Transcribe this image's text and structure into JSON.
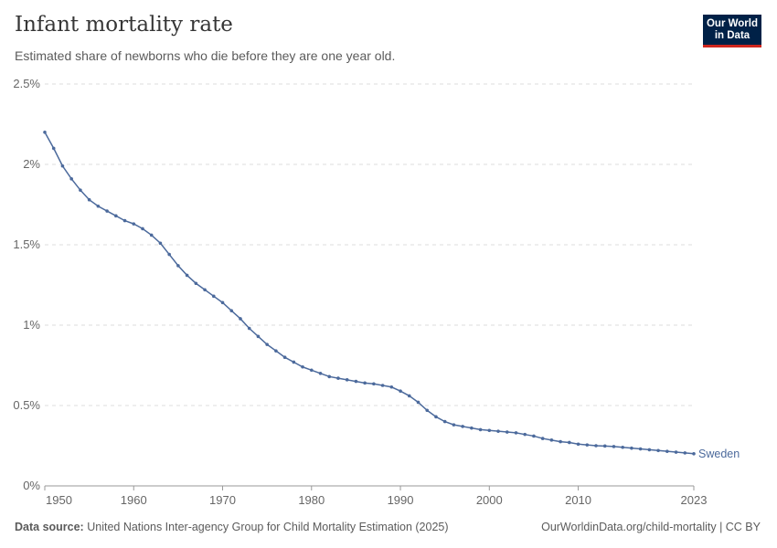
{
  "header": {
    "title": "Infant mortality rate",
    "subtitle": "Estimated share of newborns who die before they are one year old."
  },
  "logo": {
    "line1": "Our World",
    "line2": "in Data"
  },
  "footer": {
    "source_label": "Data source:",
    "source": "United Nations Inter-agency Group for Child Mortality Estimation (2025)",
    "link": "OurWorldinData.org/child-mortality | CC BY"
  },
  "chart_data": {
    "type": "line",
    "title": "Infant mortality rate",
    "xlabel": "",
    "ylabel": "",
    "xlim": [
      1950,
      2023
    ],
    "ylim": [
      0,
      2.5
    ],
    "grid": "horizontal dashed",
    "x_ticks": [
      "1950",
      "1960",
      "1970",
      "1980",
      "1990",
      "2000",
      "2010",
      "2023"
    ],
    "y_ticks": [
      "0%",
      "0.5%",
      "1%",
      "1.5%",
      "2%",
      "2.5%"
    ],
    "series": [
      {
        "name": "Sweden",
        "color": "#4c6a9c",
        "x": [
          1950,
          1951,
          1952,
          1953,
          1954,
          1955,
          1956,
          1957,
          1958,
          1959,
          1960,
          1961,
          1962,
          1963,
          1964,
          1965,
          1966,
          1967,
          1968,
          1969,
          1970,
          1971,
          1972,
          1973,
          1974,
          1975,
          1976,
          1977,
          1978,
          1979,
          1980,
          1981,
          1982,
          1983,
          1984,
          1985,
          1986,
          1987,
          1988,
          1989,
          1990,
          1991,
          1992,
          1993,
          1994,
          1995,
          1996,
          1997,
          1998,
          1999,
          2000,
          2001,
          2002,
          2003,
          2004,
          2005,
          2006,
          2007,
          2008,
          2009,
          2010,
          2011,
          2012,
          2013,
          2014,
          2015,
          2016,
          2017,
          2018,
          2019,
          2020,
          2021,
          2022,
          2023
        ],
        "values": [
          2.2,
          2.1,
          1.99,
          1.91,
          1.84,
          1.78,
          1.74,
          1.71,
          1.68,
          1.65,
          1.63,
          1.6,
          1.56,
          1.51,
          1.44,
          1.37,
          1.31,
          1.26,
          1.22,
          1.18,
          1.14,
          1.09,
          1.04,
          0.98,
          0.93,
          0.88,
          0.84,
          0.8,
          0.77,
          0.74,
          0.72,
          0.7,
          0.68,
          0.67,
          0.66,
          0.65,
          0.64,
          0.635,
          0.625,
          0.615,
          0.59,
          0.56,
          0.52,
          0.47,
          0.43,
          0.4,
          0.38,
          0.37,
          0.36,
          0.35,
          0.345,
          0.34,
          0.335,
          0.33,
          0.32,
          0.31,
          0.295,
          0.285,
          0.275,
          0.27,
          0.26,
          0.255,
          0.25,
          0.248,
          0.245,
          0.24,
          0.235,
          0.23,
          0.225,
          0.22,
          0.215,
          0.21,
          0.205,
          0.2
        ]
      }
    ]
  }
}
